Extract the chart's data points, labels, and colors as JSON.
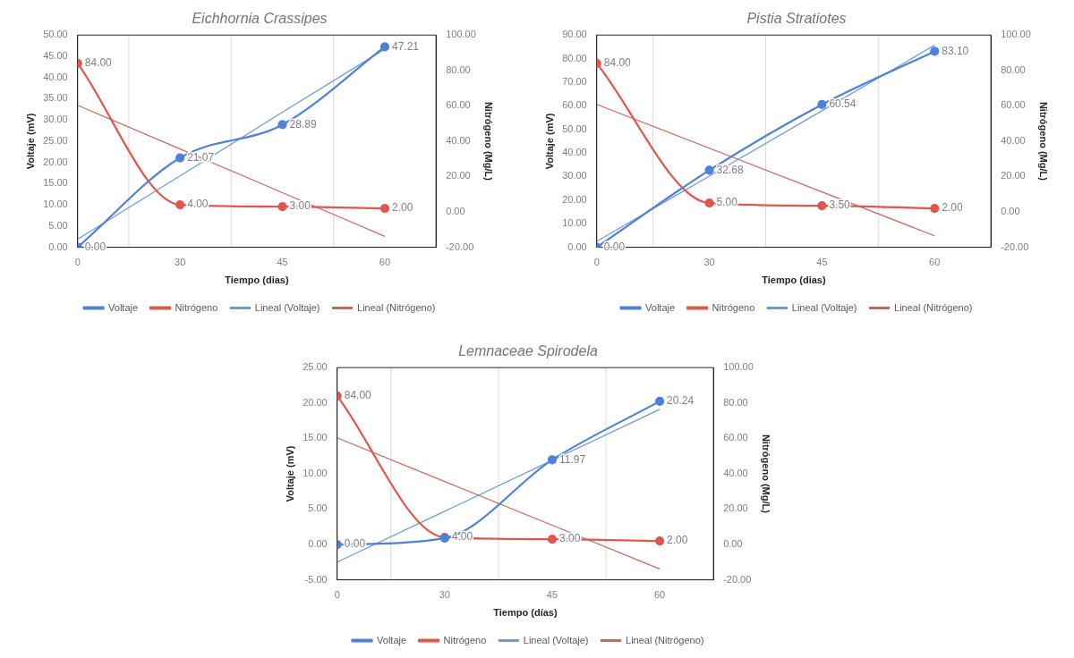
{
  "chart_data": [
    {
      "type": "line",
      "title": "Eichhornia Crassipes",
      "xlabel": "Tiempo (dias)",
      "ylabel": "Voltaje (mV)",
      "y2label": "Nitrógeno (Mg/L)",
      "categories": [
        "0",
        "30",
        "45",
        "60"
      ],
      "ylim": [
        0,
        50
      ],
      "yticks": [
        {
          "value": 0,
          "label": "0.00"
        },
        {
          "value": 5,
          "label": "5.00"
        },
        {
          "value": 10,
          "label": "10.00"
        },
        {
          "value": 15,
          "label": "15.00"
        },
        {
          "value": 20,
          "label": "20.00"
        },
        {
          "value": 25,
          "label": "25.00"
        },
        {
          "value": 30,
          "label": "30.00"
        },
        {
          "value": 35,
          "label": "35.00"
        },
        {
          "value": 40,
          "label": "40.00"
        },
        {
          "value": 45,
          "label": "45.00"
        },
        {
          "value": 50,
          "label": "50.00"
        }
      ],
      "y2lim": [
        -20,
        100
      ],
      "y2ticks": [
        {
          "value": -20,
          "label": "-20.00"
        },
        {
          "value": 0,
          "label": "0.00"
        },
        {
          "value": 20,
          "label": "20.00"
        },
        {
          "value": 40,
          "label": "40.00"
        },
        {
          "value": 60,
          "label": "60.00"
        },
        {
          "value": 80,
          "label": "80.00"
        },
        {
          "value": 100,
          "label": "100.00"
        }
      ],
      "grid": "x",
      "legend": "bottom",
      "series": [
        {
          "name": "Voltaje",
          "color": "#4f81d9",
          "marker": "circle",
          "values": [
            0,
            21.07,
            28.89,
            47.21
          ],
          "value_labels": [
            "0.00",
            "21.07",
            "28.89",
            "47.21"
          ]
        },
        {
          "name": "Nitrógeno",
          "color": "#e0574f",
          "marker": "circle",
          "axis": "y2",
          "values": [
            84,
            4,
            3,
            2
          ],
          "value_labels": [
            "84.00",
            "4.00",
            "3.00",
            "2.00"
          ]
        },
        {
          "name": "Lineal (Voltaje)",
          "color": "#6b9ad6",
          "marker": "none",
          "values": [
            1.9,
            16.8,
            31.8,
            46.7
          ]
        },
        {
          "name": "Lineal (Nitrógeno)",
          "color": "#c8675f",
          "marker": "none",
          "axis": "y2",
          "values": [
            60.3,
            35.6,
            10.9,
            -13.8
          ]
        }
      ]
    },
    {
      "type": "line",
      "title": "Pistia Stratiotes",
      "xlabel": "Tiempo (dias)",
      "ylabel": "Voltaje (mV)",
      "y2label": "Nitrógeno (Mg/L)",
      "categories": [
        "0",
        "30",
        "45",
        "60"
      ],
      "ylim": [
        0,
        90
      ],
      "yticks": [
        {
          "value": 0,
          "label": "0.00"
        },
        {
          "value": 10,
          "label": "10.00"
        },
        {
          "value": 20,
          "label": "20.00"
        },
        {
          "value": 30,
          "label": "30.00"
        },
        {
          "value": 40,
          "label": "40.00"
        },
        {
          "value": 50,
          "label": "50.00"
        },
        {
          "value": 60,
          "label": "60.00"
        },
        {
          "value": 70,
          "label": "70.00"
        },
        {
          "value": 80,
          "label": "80.00"
        },
        {
          "value": 90,
          "label": "90.00"
        }
      ],
      "y2lim": [
        -20,
        100
      ],
      "y2ticks": [
        {
          "value": -20,
          "label": "-20.00"
        },
        {
          "value": 0,
          "label": "0.00"
        },
        {
          "value": 20,
          "label": "20.00"
        },
        {
          "value": 40,
          "label": "40.00"
        },
        {
          "value": 60,
          "label": "60.00"
        },
        {
          "value": 80,
          "label": "80.00"
        },
        {
          "value": 100,
          "label": "100.00"
        }
      ],
      "grid": "x",
      "legend": "bottom",
      "series": [
        {
          "name": "Voltaje",
          "color": "#4f81d9",
          "marker": "circle",
          "values": [
            0,
            32.68,
            60.54,
            83.1
          ],
          "value_labels": [
            "0.00",
            "32.68",
            "60.54",
            "83.10"
          ]
        },
        {
          "name": "Nitrógeno",
          "color": "#e0574f",
          "marker": "circle",
          "axis": "y2",
          "values": [
            84,
            5,
            3.5,
            2
          ],
          "value_labels": [
            "84.00",
            "5.00",
            "3.50",
            "2.00"
          ]
        },
        {
          "name": "Lineal (Voltaje)",
          "color": "#6b9ad6",
          "marker": "none",
          "values": [
            2.5,
            30.2,
            57.9,
            85.7
          ]
        },
        {
          "name": "Lineal (Nitrógeno)",
          "color": "#c8675f",
          "marker": "none",
          "axis": "y2",
          "values": [
            60.8,
            36.0,
            11.3,
            -13.5
          ]
        }
      ]
    },
    {
      "type": "line",
      "title": "Lemnaceae Spirodela",
      "xlabel": "Tiempo (días)",
      "ylabel": "Voltaje (mV)",
      "y2label": "Nitrógeno (Mg/L)",
      "categories": [
        "0",
        "30",
        "45",
        "60"
      ],
      "ylim": [
        -5,
        25
      ],
      "yticks": [
        {
          "value": -5,
          "label": "-5.00"
        },
        {
          "value": 0,
          "label": "0.00"
        },
        {
          "value": 5,
          "label": "5.00"
        },
        {
          "value": 10,
          "label": "10.00"
        },
        {
          "value": 15,
          "label": "15.00"
        },
        {
          "value": 20,
          "label": "20.00"
        },
        {
          "value": 25,
          "label": "25.00"
        }
      ],
      "y2lim": [
        -20,
        100
      ],
      "y2ticks": [
        {
          "value": -20,
          "label": "-20.00"
        },
        {
          "value": 0,
          "label": "0.00"
        },
        {
          "value": 20,
          "label": "20.00"
        },
        {
          "value": 40,
          "label": "40.00"
        },
        {
          "value": 60,
          "label": "60.00"
        },
        {
          "value": 80,
          "label": "80.00"
        },
        {
          "value": 100,
          "label": "100.00"
        }
      ],
      "grid": "x",
      "legend": "bottom",
      "series": [
        {
          "name": "Voltaje",
          "color": "#4f81d9",
          "marker": "circle",
          "values": [
            0,
            0.9,
            11.97,
            20.24
          ],
          "value_labels": [
            "0.00",
            null,
            "11.97",
            "20.24"
          ]
        },
        {
          "name": "Nitrógeno",
          "color": "#e0574f",
          "marker": "circle",
          "axis": "y2",
          "values": [
            84,
            4,
            3,
            2
          ],
          "value_labels": [
            "84.00",
            "4.00",
            "3.00",
            "2.00"
          ]
        },
        {
          "name": "Lineal (Voltaje)",
          "color": "#6b9ad6",
          "marker": "none",
          "values": [
            -2.5,
            4.7,
            11.9,
            19.1
          ]
        },
        {
          "name": "Lineal (Nitrógeno)",
          "color": "#c8675f",
          "marker": "none",
          "axis": "y2",
          "values": [
            60.3,
            35.6,
            10.9,
            -13.8
          ]
        }
      ]
    }
  ]
}
